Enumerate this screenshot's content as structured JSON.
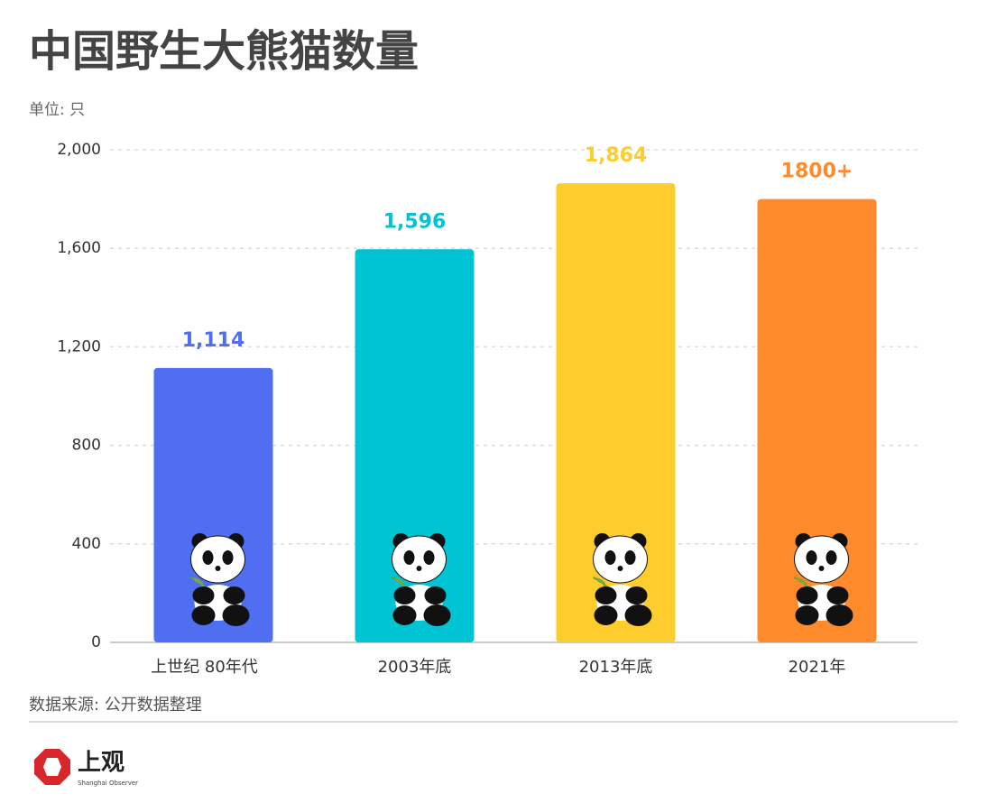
{
  "chart_data": {
    "type": "bar",
    "title": "中国野生大熊猫数量",
    "subtitle": "单位: 只",
    "categories": [
      "上世纪 80年代",
      "2003年底",
      "2013年底",
      "2021年"
    ],
    "values": [
      1114,
      1596,
      1864,
      1800
    ],
    "value_labels": [
      "1,114",
      "1,596",
      "1,864",
      "1800+"
    ],
    "colors": [
      "#4f6ff0",
      "#00c3d3",
      "#fdcc2d",
      "#ff8a2b"
    ],
    "ylim": [
      0,
      2000
    ],
    "yticks": [
      0,
      400,
      800,
      {
        "value": 1200,
        "label": "1,200"
      },
      {
        "value": 1600,
        "label": "1,600"
      },
      {
        "value": 2000,
        "label": "2,000"
      }
    ],
    "grid": true,
    "source": "数据来源: 公开数据整理",
    "logo": "上观",
    "logo_sub": "Shanghai Observer"
  }
}
